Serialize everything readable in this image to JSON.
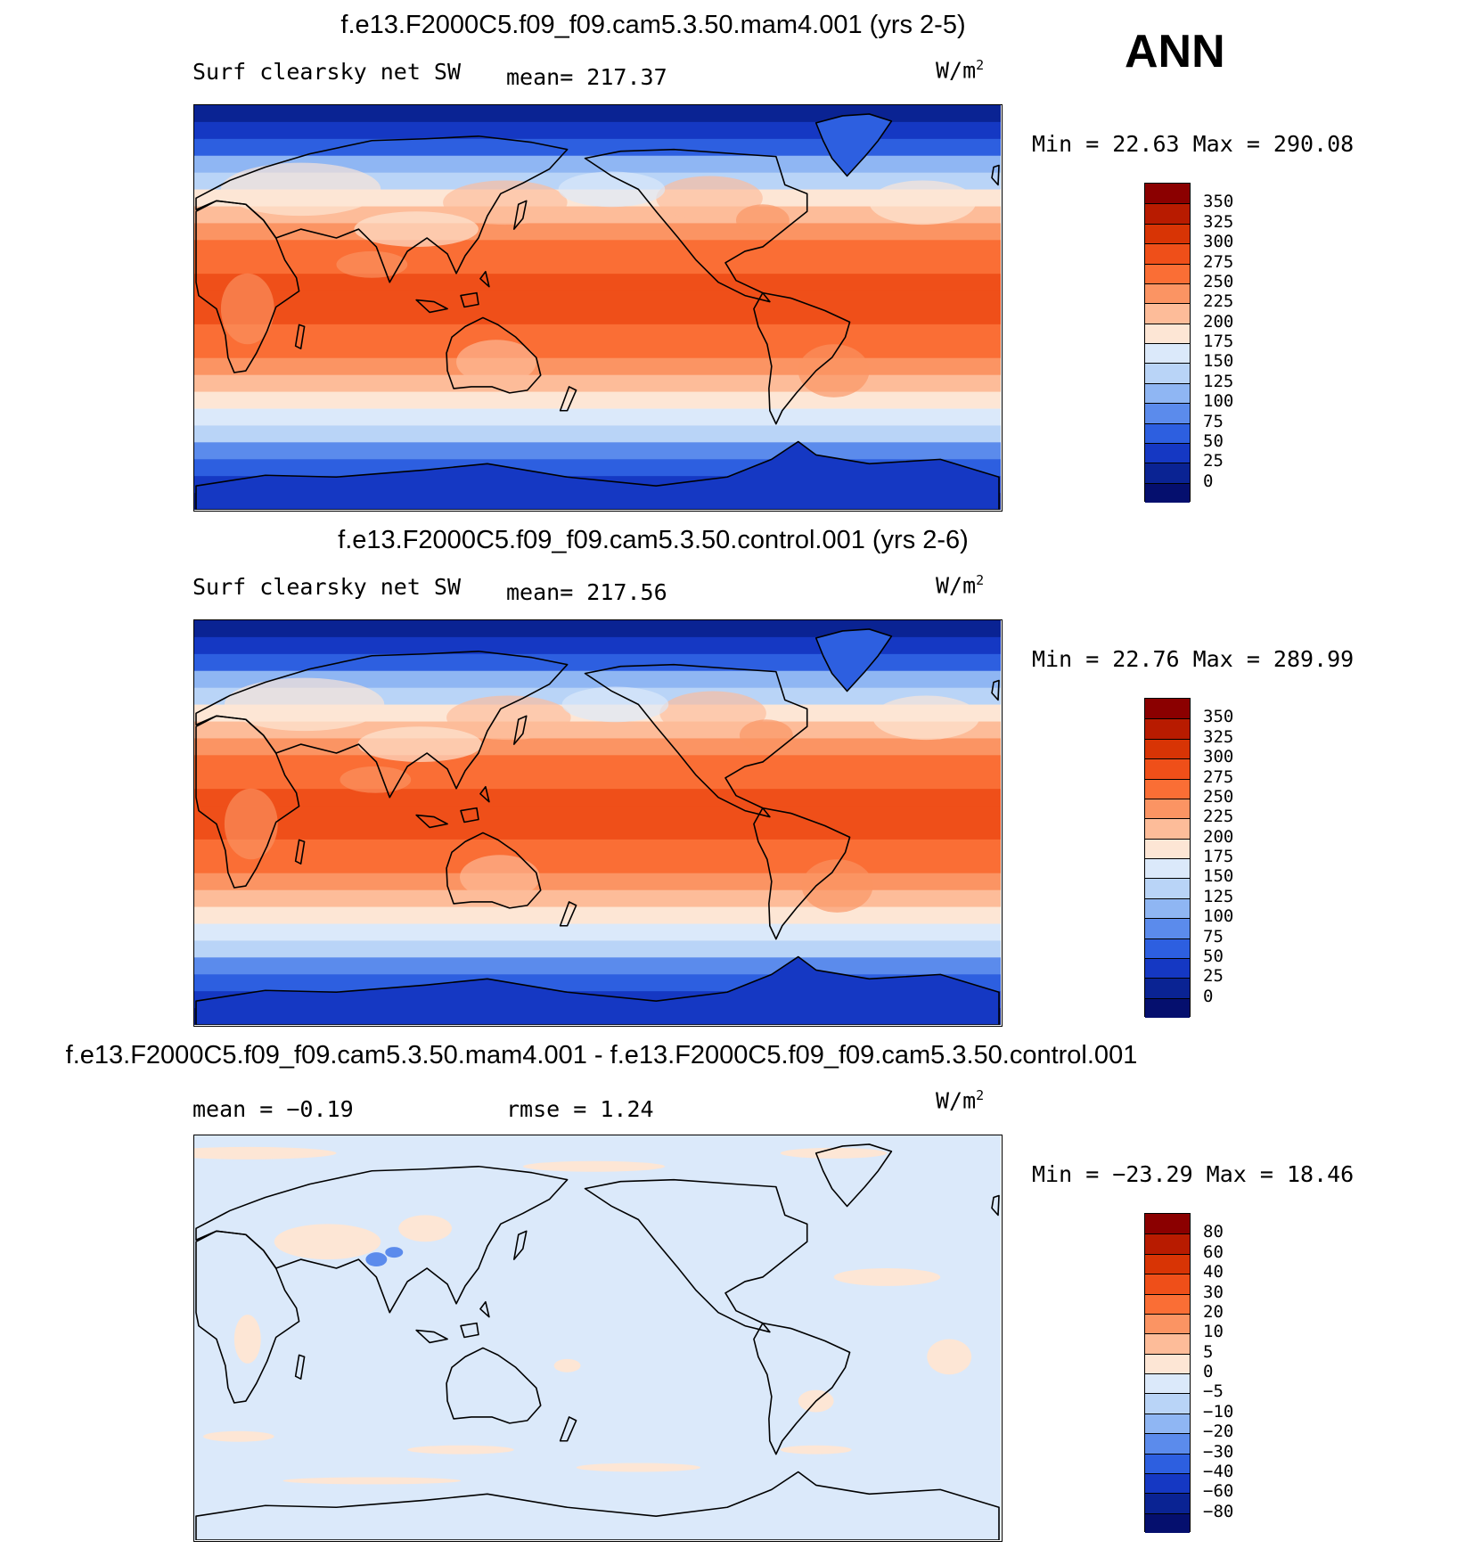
{
  "season": "ANN",
  "units_base": "W/m",
  "units_exp": "2",
  "colorbars": {
    "abs": {
      "labels": [
        "350",
        "325",
        "300",
        "275",
        "250",
        "225",
        "200",
        "175",
        "150",
        "125",
        "100",
        "75",
        "50",
        "25",
        "0"
      ],
      "colors": [
        "#8b0000",
        "#b81b00",
        "#d83405",
        "#ef4f19",
        "#fa6e35",
        "#fb9463",
        "#fdbc99",
        "#fde6d5",
        "#dbe9fa",
        "#b9d4f7",
        "#8fb6f3",
        "#5b8bec",
        "#2d5fe0",
        "#1538c3",
        "#0a2393",
        "#050f6e"
      ]
    },
    "diff": {
      "labels": [
        "80",
        "60",
        "40",
        "30",
        "20",
        "10",
        "5",
        "0",
        "−5",
        "−10",
        "−20",
        "−30",
        "−40",
        "−60",
        "−80"
      ],
      "colors": [
        "#8b0000",
        "#b81b00",
        "#d83405",
        "#ef4f19",
        "#fa6e35",
        "#fb9463",
        "#fdbc99",
        "#fde6d5",
        "#dbe9fa",
        "#b9d4f7",
        "#8fb6f3",
        "#5b8bec",
        "#2d5fe0",
        "#1538c3",
        "#0a2393",
        "#050f6e"
      ]
    }
  },
  "panels": [
    {
      "title": "f.e13.F2000C5.f09_f09.cam5.3.50.mam4.001 (yrs 2-5)",
      "left_label": "Surf clearsky net SW",
      "mid_label": "mean= 217.37",
      "stats": "Min =   22.63 Max = 290.08"
    },
    {
      "title": "f.e13.F2000C5.f09_f09.cam5.3.50.control.001 (yrs 2-6)",
      "left_label": "Surf clearsky net SW",
      "mid_label": "mean= 217.56",
      "stats": "Min =   22.76 Max = 289.99"
    },
    {
      "title": "f.e13.F2000C5.f09_f09.cam5.3.50.mam4.001 - f.e13.F2000C5.f09_f09.cam5.3.50.control.001",
      "left_label": "mean =  −0.19",
      "mid_label": "rmse =    1.24",
      "stats": "Min = −23.29 Max =   18.46"
    }
  ]
}
